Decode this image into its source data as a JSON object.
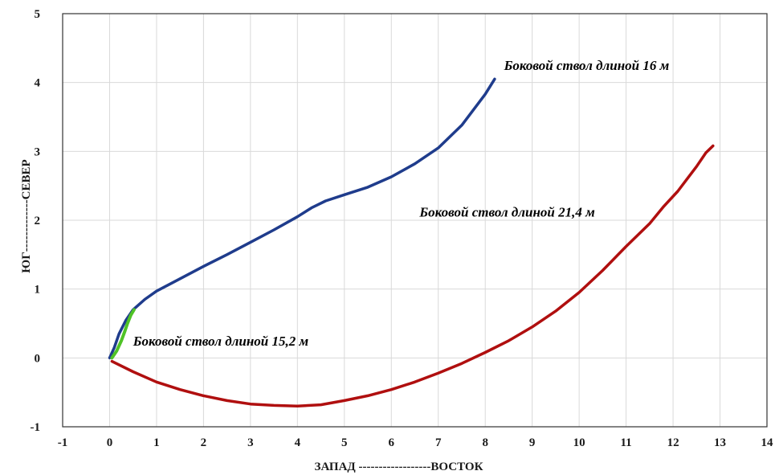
{
  "chart_data": {
    "type": "line",
    "xlabel": "ЗАПАД ------------------ВОСТОК",
    "ylabel": "ЮГ-------------СЕВЕР",
    "xlim": [
      -1,
      14
    ],
    "ylim": [
      -1,
      5
    ],
    "xticks": [
      -1,
      0,
      1,
      2,
      3,
      4,
      5,
      6,
      7,
      8,
      9,
      10,
      11,
      12,
      13,
      14
    ],
    "yticks": [
      -1,
      0,
      1,
      2,
      3,
      4,
      5
    ],
    "grid": true,
    "legend": "none",
    "series": [
      {
        "color": "#1f3c8c",
        "points": [
          [
            0,
            0
          ],
          [
            0.1,
            0.15
          ],
          [
            0.2,
            0.35
          ],
          [
            0.35,
            0.55
          ],
          [
            0.5,
            0.7
          ],
          [
            0.75,
            0.85
          ],
          [
            1,
            0.97
          ],
          [
            1.5,
            1.15
          ],
          [
            2,
            1.33
          ],
          [
            2.5,
            1.5
          ],
          [
            3,
            1.68
          ],
          [
            3.5,
            1.86
          ],
          [
            4,
            2.05
          ],
          [
            4.3,
            2.18
          ],
          [
            4.6,
            2.28
          ],
          [
            5,
            2.37
          ],
          [
            5.5,
            2.48
          ],
          [
            6,
            2.63
          ],
          [
            6.5,
            2.82
          ],
          [
            7,
            3.05
          ],
          [
            7.5,
            3.38
          ],
          [
            8,
            3.83
          ],
          [
            8.2,
            4.05
          ]
        ]
      },
      {
        "color": "#b00f0f",
        "points": [
          [
            0.05,
            -0.05
          ],
          [
            0.5,
            -0.2
          ],
          [
            1,
            -0.35
          ],
          [
            1.5,
            -0.46
          ],
          [
            2,
            -0.55
          ],
          [
            2.5,
            -0.62
          ],
          [
            3,
            -0.67
          ],
          [
            3.5,
            -0.69
          ],
          [
            4,
            -0.7
          ],
          [
            4.5,
            -0.68
          ],
          [
            5,
            -0.62
          ],
          [
            5.5,
            -0.55
          ],
          [
            6,
            -0.46
          ],
          [
            6.5,
            -0.35
          ],
          [
            7,
            -0.22
          ],
          [
            7.5,
            -0.08
          ],
          [
            8,
            0.08
          ],
          [
            8.5,
            0.25
          ],
          [
            9,
            0.45
          ],
          [
            9.5,
            0.68
          ],
          [
            10,
            0.95
          ],
          [
            10.5,
            1.27
          ],
          [
            11,
            1.62
          ],
          [
            11.5,
            1.95
          ],
          [
            11.8,
            2.2
          ],
          [
            12.1,
            2.42
          ],
          [
            12.3,
            2.6
          ],
          [
            12.5,
            2.78
          ],
          [
            12.7,
            2.98
          ],
          [
            12.85,
            3.08
          ]
        ]
      },
      {
        "color": "#4fc226",
        "points": [
          [
            0.05,
            0
          ],
          [
            0.15,
            0.1
          ],
          [
            0.25,
            0.25
          ],
          [
            0.32,
            0.38
          ],
          [
            0.38,
            0.5
          ],
          [
            0.45,
            0.62
          ],
          [
            0.52,
            0.7
          ]
        ]
      }
    ],
    "annotations": [
      {
        "text": "Боковой ствол длиной 16 м",
        "x": 8.4,
        "y": 4.18
      },
      {
        "text": "Боковой ствол длиной 21,4 м",
        "x": 6.6,
        "y": 2.05
      },
      {
        "text": "Боковой ствол длиной 15,2 м",
        "x": 0.5,
        "y": 0.18
      }
    ]
  }
}
